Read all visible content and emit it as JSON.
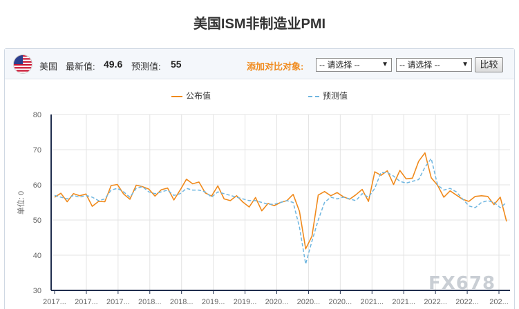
{
  "page": {
    "title": "美国ISM非制造业PMI"
  },
  "toolbar": {
    "country": "美国",
    "latest_label": "最新值:",
    "latest_value": "49.6",
    "forecast_label": "预测值:",
    "forecast_value": "55",
    "compare_label": "添加对比对象:",
    "select1_value": "-- 请选择 --",
    "select2_value": "-- 请选择 --",
    "compare_button": "比较"
  },
  "watermark": "FX678",
  "colors": {
    "actual": "#f08a1c",
    "forecast": "#6fb6e0",
    "axis": "#1f2d4d"
  },
  "chart_data": {
    "type": "line",
    "title": "美国ISM非制造业PMI",
    "ylabel": "单位: 0",
    "ylim": [
      30,
      80
    ],
    "yticks": [
      30,
      40,
      50,
      60,
      70,
      80
    ],
    "grid": true,
    "legend_position": "top",
    "xtick_labels": [
      "2017...",
      "2017...",
      "2017...",
      "2018...",
      "2018...",
      "2019...",
      "2019...",
      "2020...",
      "2020...",
      "2020...",
      "2021...",
      "2021...",
      "2022...",
      "2022...",
      "202..."
    ],
    "series": [
      {
        "name": "公布值",
        "values": [
          56.5,
          57.6,
          55.2,
          57.5,
          56.9,
          57.4,
          53.9,
          55.3,
          55.2,
          59.8,
          60.1,
          57.4,
          55.9,
          59.9,
          59.5,
          58.8,
          56.8,
          58.6,
          59.1,
          55.7,
          58.5,
          61.6,
          60.3,
          60.8,
          57.7,
          56.8,
          59.7,
          56.0,
          55.5,
          56.9,
          55.1,
          53.7,
          56.4,
          52.6,
          54.7,
          54.1,
          55.0,
          55.5,
          57.3,
          52.5,
          41.8,
          45.4,
          57.1,
          58.1,
          56.9,
          57.8,
          56.6,
          55.9,
          57.2,
          58.7,
          55.3,
          63.7,
          62.7,
          64.0,
          60.1,
          64.1,
          61.7,
          61.9,
          66.7,
          69.1,
          62.0,
          59.9,
          56.5,
          58.3,
          57.1,
          55.9,
          55.3,
          56.7,
          56.9,
          56.7,
          54.4,
          56.5,
          49.6
        ],
        "color": "#f08a1c"
      },
      {
        "name": "预测值",
        "values": [
          57.0,
          56.5,
          56.0,
          57.0,
          56.5,
          57.0,
          56.5,
          55.5,
          56.0,
          58.5,
          59.0,
          58.0,
          56.5,
          59.0,
          59.5,
          58.0,
          57.5,
          58.0,
          58.5,
          57.0,
          57.5,
          59.0,
          58.5,
          58.5,
          58.0,
          56.5,
          58.0,
          57.5,
          57.0,
          56.5,
          56.0,
          55.5,
          55.5,
          55.0,
          54.5,
          54.5,
          55.0,
          55.5,
          55.0,
          48.0,
          37.5,
          44.0,
          50.0,
          55.0,
          56.5,
          56.0,
          56.5,
          56.0,
          55.5,
          57.5,
          56.5,
          59.0,
          63.5,
          63.5,
          62.5,
          61.0,
          60.5,
          61.0,
          61.5,
          65.0,
          67.5,
          60.0,
          58.5,
          59.0,
          58.0,
          56.0,
          54.0,
          53.5,
          55.0,
          55.5,
          55.0,
          53.5,
          55.0
        ],
        "color": "#6fb6e0"
      }
    ]
  }
}
